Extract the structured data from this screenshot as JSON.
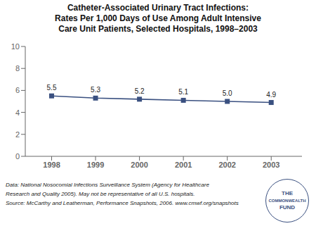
{
  "chart_data": {
    "type": "line",
    "title": "Catheter-Associated Urinary Tract Infections:\nRates Per 1,000 Days of Use Among Adult Intensive\nCare Unit Patients, Selected Hospitals, 1998–2003",
    "x": [
      1998,
      1999,
      2000,
      2001,
      2002,
      2003
    ],
    "values": [
      5.5,
      5.3,
      5.2,
      5.1,
      5.0,
      4.9
    ],
    "value_labels": [
      "5.5",
      "5.3",
      "5.2",
      "5.1",
      "5.0",
      "4.9"
    ],
    "data_labels": true,
    "color": "#3A5080",
    "marker": "square",
    "xlim": [
      1997.4,
      2003.7
    ],
    "xticks": [
      1998,
      1999,
      2000,
      2001,
      2002,
      2003
    ],
    "ylim": [
      0,
      10
    ],
    "yticks": [
      0,
      2,
      4,
      6,
      8,
      10
    ],
    "grid": false,
    "annotations": [
      "Data: National Nosocomial Infections Surveillance System (Agency for Healthcare",
      "Research and Quality 2005). May not be representative of all U.S. hospitals.",
      "Source: McCarthy and Leatherman, Performance Snapshots, 2006. www.cmwf.org/snapshots",
      "THE",
      "COMMONWEALTH",
      "FUND"
    ]
  }
}
